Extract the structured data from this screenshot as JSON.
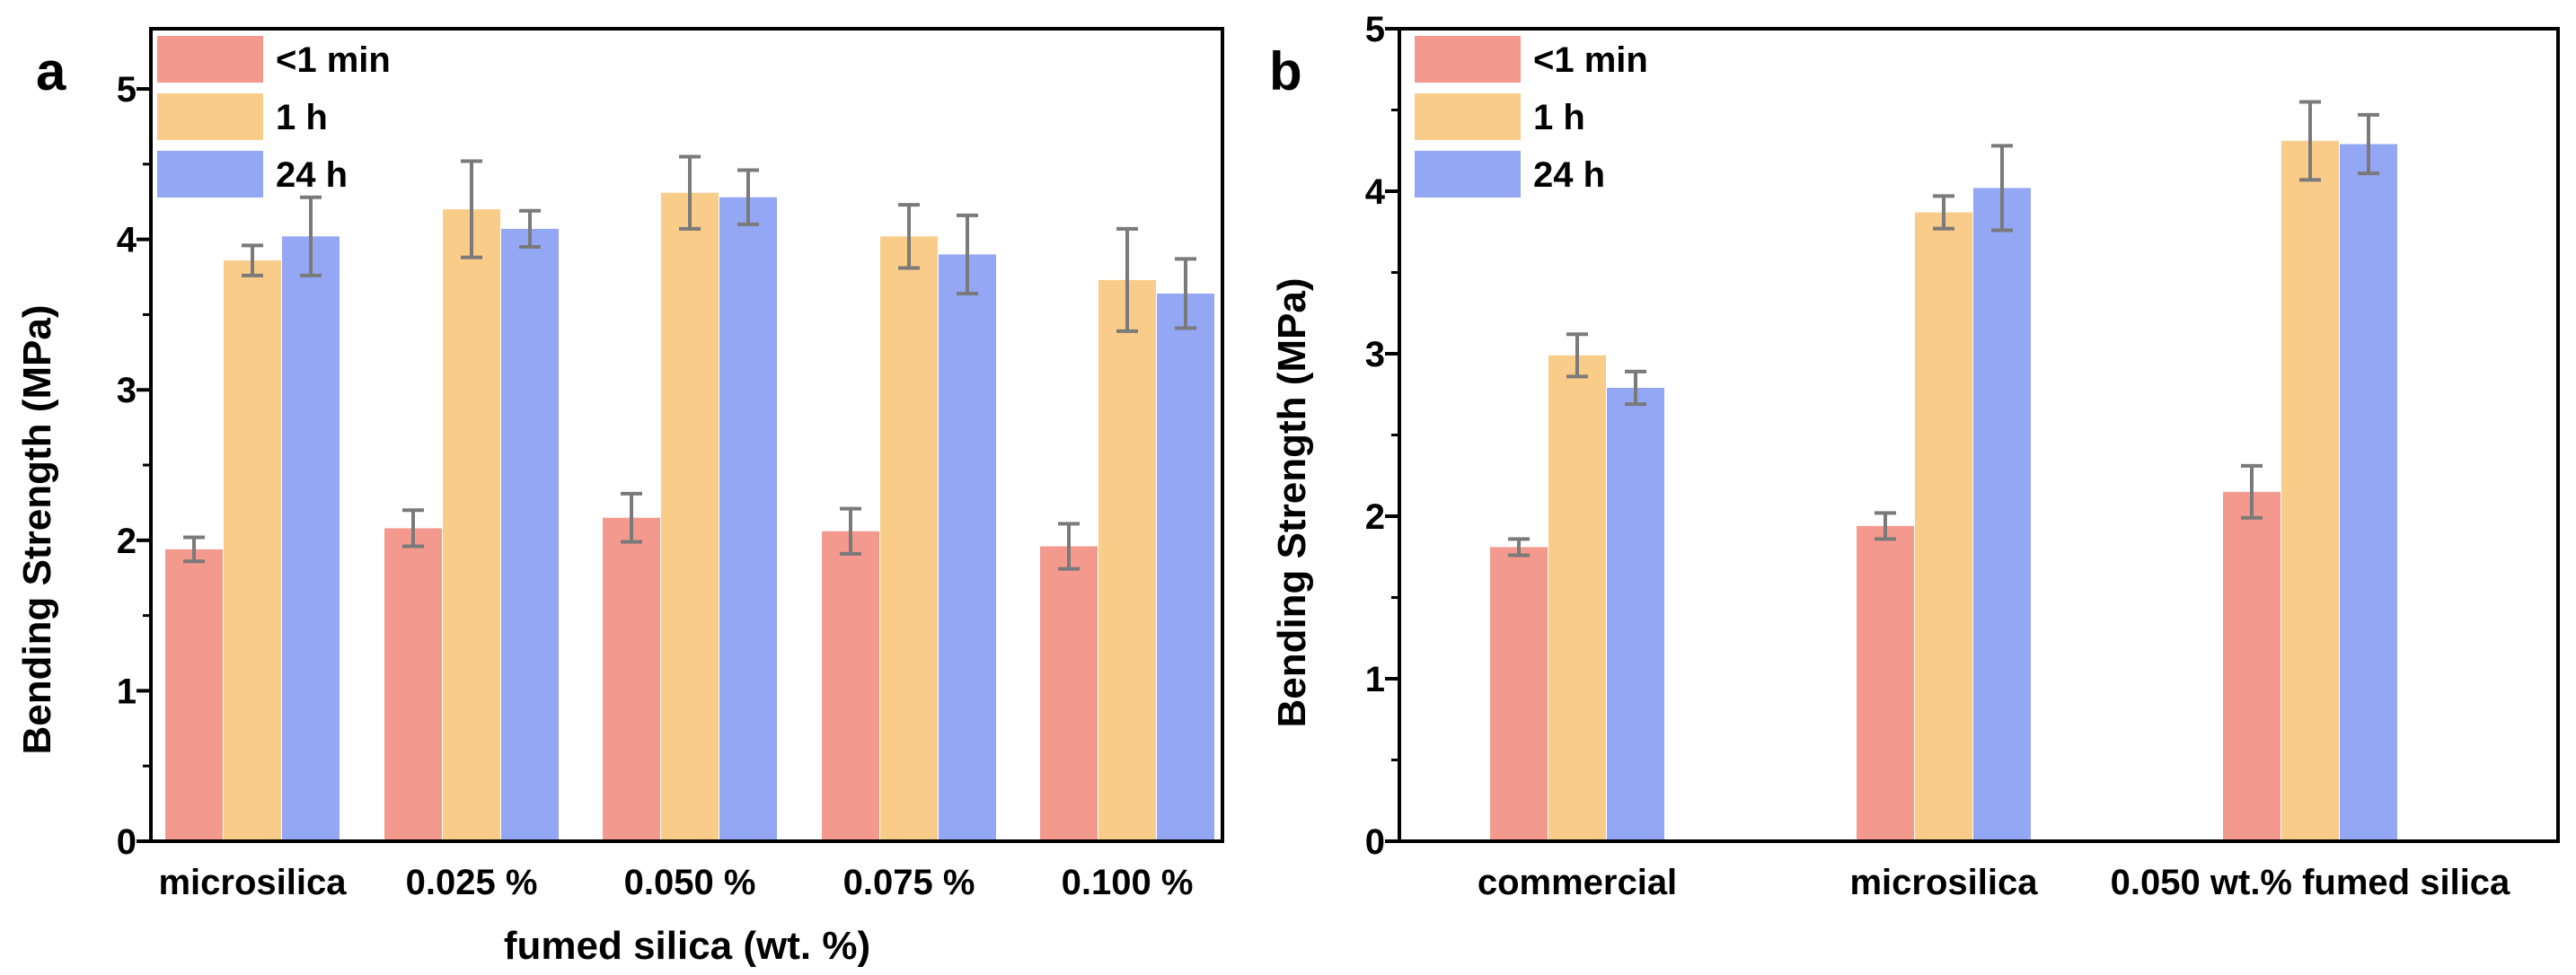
{
  "chart_data": [
    {
      "type": "bar",
      "panel_label": "a",
      "title": "",
      "xlabel": "fumed silica (wt. %)",
      "ylabel": "Bending Strength (MPa)",
      "ylim": [
        0,
        5.4
      ],
      "yticks": [
        0,
        1,
        2,
        3,
        4,
        5
      ],
      "categories": [
        "microsilica",
        "0.025 %",
        "0.050 %",
        "0.075 %",
        "0.100 %"
      ],
      "legend_position": "top-left",
      "series": [
        {
          "name": "<1 min",
          "color": "#F4998E",
          "values": [
            1.94,
            2.08,
            2.15,
            2.06,
            1.96
          ],
          "errors": [
            0.08,
            0.12,
            0.16,
            0.15,
            0.15
          ]
        },
        {
          "name": "1 h",
          "color": "#F9CC8A",
          "values": [
            3.86,
            4.2,
            4.31,
            4.02,
            3.73
          ],
          "errors": [
            0.1,
            0.32,
            0.24,
            0.21,
            0.34
          ]
        },
        {
          "name": "24 h",
          "color": "#94A7F5",
          "values": [
            4.02,
            4.07,
            4.28,
            3.9,
            3.64
          ],
          "errors": [
            0.26,
            0.12,
            0.18,
            0.26,
            0.23
          ]
        }
      ]
    },
    {
      "type": "bar",
      "panel_label": "b",
      "title": "",
      "xlabel": "",
      "ylabel": "Bending Strength (MPa)",
      "ylim": [
        0,
        5
      ],
      "yticks": [
        0,
        1,
        2,
        3,
        4,
        5
      ],
      "categories": [
        "commercial",
        "microsilica",
        "0.050 wt.% fumed silica"
      ],
      "legend_position": "top-left",
      "series": [
        {
          "name": "<1 min",
          "color": "#F4998E",
          "values": [
            1.81,
            1.94,
            2.15
          ],
          "errors": [
            0.05,
            0.08,
            0.16
          ]
        },
        {
          "name": "1 h",
          "color": "#F9CC8A",
          "values": [
            2.99,
            3.87,
            4.31
          ],
          "errors": [
            0.13,
            0.1,
            0.24
          ]
        },
        {
          "name": "24 h",
          "color": "#94A7F5",
          "values": [
            2.79,
            4.02,
            4.29
          ],
          "errors": [
            0.1,
            0.26,
            0.18
          ]
        }
      ]
    }
  ]
}
